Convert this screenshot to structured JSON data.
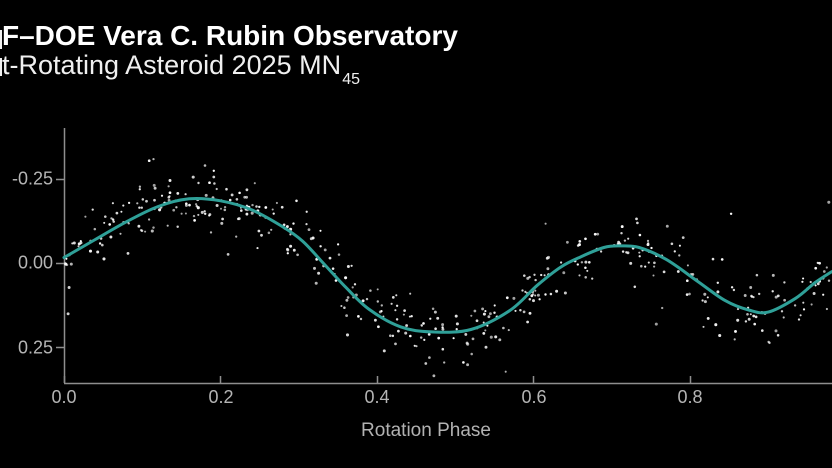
{
  "header": {
    "title": "F–DOE Vera C. Rubin Observatory",
    "subtitle": "t-Rotating Asteroid 2025 MN",
    "subtitle_subscript": "45"
  },
  "colors": {
    "background": "#000000",
    "title_text": "#ffffff",
    "subtitle_text": "#f0f0f0",
    "axis_line": "#8e8e8e",
    "tick_label": "#b5b5b5",
    "fit_curve": "#2FA098",
    "data_point": "#ffffff"
  },
  "chart_data": {
    "type": "scatter",
    "title": "F–DOE Vera C. Rubin Observatory",
    "subtitle": "t-Rotating Asteroid 2025 MN45",
    "xlabel": "Rotation Phase",
    "ylabel": "",
    "grid": false,
    "legend": "none",
    "x_ticks": [
      "0.0",
      "0.2",
      "0.4",
      "0.6",
      "0.8"
    ],
    "x_tick_values": [
      0.0,
      0.2,
      0.4,
      0.6,
      0.8
    ],
    "y_ticks": [
      "-0.25",
      "0.00",
      "0.25"
    ],
    "y_tick_values": [
      -0.25,
      0.0,
      0.25
    ],
    "xlim": [
      0.0,
      0.981
    ],
    "ylim": [
      0.357,
      -0.402
    ],
    "y_axis_inverted": true,
    "series": [
      {
        "name": "fit-curve",
        "type": "line",
        "color": "#2FA098",
        "stroke_width": 3,
        "points": [
          [
            0.0,
            -0.016
          ],
          [
            0.04,
            -0.07
          ],
          [
            0.08,
            -0.123
          ],
          [
            0.12,
            -0.168
          ],
          [
            0.16,
            -0.191
          ],
          [
            0.2,
            -0.185
          ],
          [
            0.24,
            -0.158
          ],
          [
            0.28,
            -0.107
          ],
          [
            0.305,
            -0.065
          ],
          [
            0.33,
            -0.003
          ],
          [
            0.36,
            0.072
          ],
          [
            0.39,
            0.138
          ],
          [
            0.43,
            0.19
          ],
          [
            0.47,
            0.205
          ],
          [
            0.52,
            0.198
          ],
          [
            0.57,
            0.141
          ],
          [
            0.605,
            0.066
          ],
          [
            0.635,
            0.012
          ],
          [
            0.66,
            -0.018
          ],
          [
            0.69,
            -0.046
          ],
          [
            0.71,
            -0.051
          ],
          [
            0.735,
            -0.046
          ],
          [
            0.77,
            -0.01
          ],
          [
            0.81,
            0.055
          ],
          [
            0.845,
            0.112
          ],
          [
            0.875,
            0.14
          ],
          [
            0.9,
            0.146
          ],
          [
            0.935,
            0.105
          ],
          [
            0.96,
            0.058
          ],
          [
            0.981,
            0.026
          ]
        ]
      },
      {
        "name": "observed-points",
        "type": "scatter",
        "marker_color": "#ffffff",
        "marker_size_px": 2,
        "generator": {
          "distribution": "gaussian-around-fit-curve",
          "count": 470,
          "seed": 42,
          "noise_sigma_mag": 0.047,
          "outlier_fraction": 0.1,
          "outlier_sigma_mag": 0.105,
          "phase_min": 0.0,
          "phase_max": 0.981
        }
      }
    ]
  }
}
